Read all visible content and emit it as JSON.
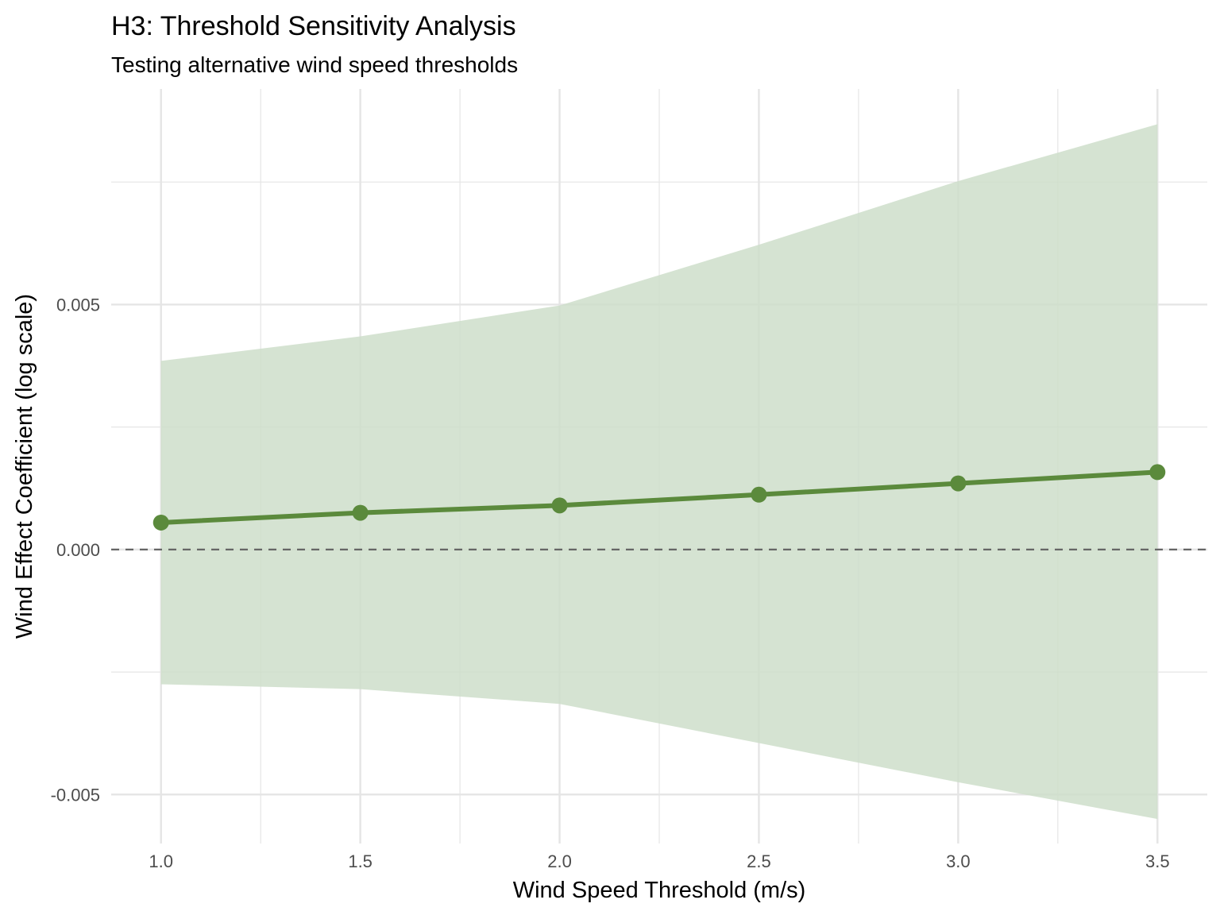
{
  "chart_data": {
    "type": "line",
    "title": "H3: Threshold Sensitivity Analysis",
    "subtitle": "Testing alternative wind speed thresholds",
    "xlabel": "Wind Speed Threshold (m/s)",
    "ylabel": "Wind Effect Coefficient (log scale)",
    "x": [
      1.0,
      1.5,
      2.0,
      2.5,
      3.0,
      3.5
    ],
    "x_tick_labels": [
      "1.0",
      "1.5",
      "2.0",
      "2.5",
      "3.0",
      "3.5"
    ],
    "y_ticks": [
      -0.005,
      0.0,
      0.005
    ],
    "y_tick_labels": [
      "-0.005",
      "0.000",
      "0.005"
    ],
    "xlim": [
      0.875,
      3.625
    ],
    "ylim": [
      -0.006,
      0.0094
    ],
    "series": [
      {
        "values": [
          0.00055,
          0.00075,
          0.0009,
          0.00112,
          0.00135,
          0.00158
        ],
        "ci_lower": [
          -0.00275,
          -0.00285,
          -0.00315,
          -0.00395,
          -0.00475,
          -0.0055
        ],
        "ci_upper": [
          0.00385,
          0.00435,
          0.00498,
          0.00622,
          0.00752,
          0.00868
        ]
      }
    ],
    "reference_line": {
      "y": 0.0,
      "style": "dashed"
    },
    "grid": true,
    "legend": "none",
    "colors": {
      "line": "#5b8a3c",
      "ribbon": "#cedeca",
      "grid": "#e5e5e5",
      "reference": "#666666"
    }
  }
}
